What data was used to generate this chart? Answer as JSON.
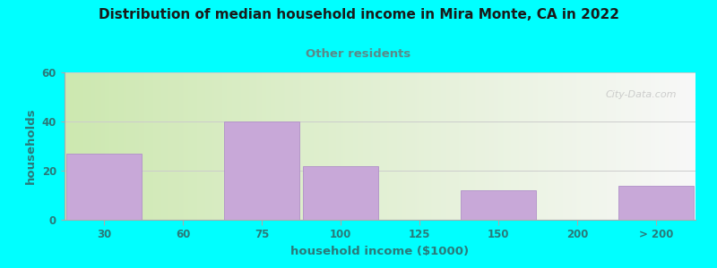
{
  "title": "Distribution of median household income in Mira Monte, CA in 2022",
  "subtitle": "Other residents",
  "xlabel": "household income ($1000)",
  "ylabel": "households",
  "title_color": "#1a1a1a",
  "subtitle_color": "#5a8a8a",
  "label_color": "#2a7a7a",
  "bg_color": "#00ffff",
  "bar_color": "#c8a8d8",
  "bar_edge_color": "#b090c8",
  "categories": [
    "30",
    "60",
    "75",
    "100",
    "125",
    "150",
    "200",
    "> 200"
  ],
  "values": [
    27,
    0,
    40,
    22,
    0,
    12,
    0,
    14
  ],
  "ylim": [
    0,
    60
  ],
  "yticks": [
    0,
    20,
    40,
    60
  ],
  "watermark": "City-Data.com",
  "plot_bg_left": "#cde8b0",
  "plot_bg_right": "#f8f8f8"
}
